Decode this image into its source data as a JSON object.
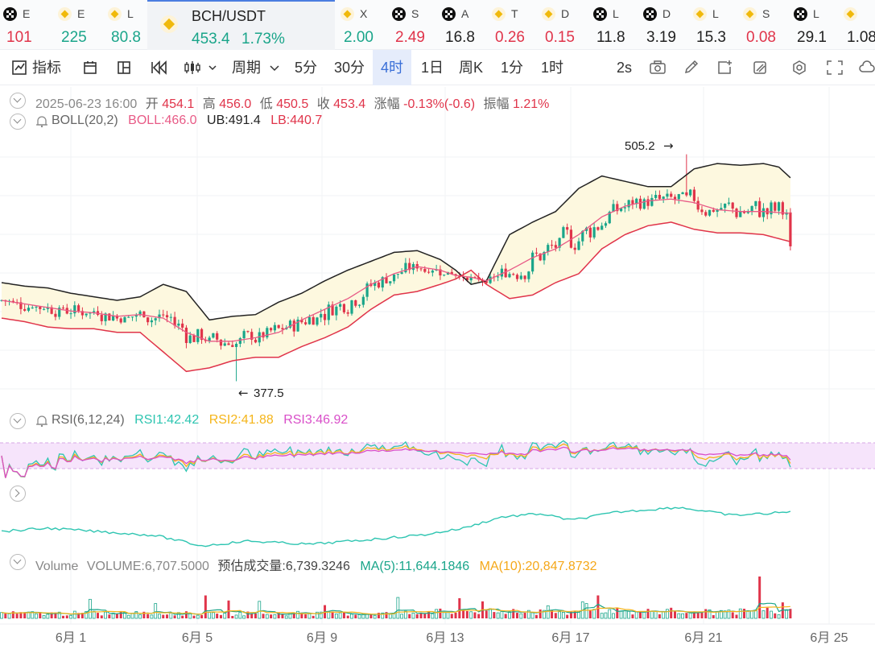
{
  "ticker": [
    {
      "icon": "okx-icon",
      "sym": "E",
      "val": "101",
      "dir": "dn",
      "x": 4
    },
    {
      "icon": "binance-icon",
      "sym": "E",
      "val": "225",
      "dir": "up",
      "x": 72
    },
    {
      "icon": "binance-icon",
      "sym": "L",
      "val": "80.8",
      "dir": "up",
      "x": 134
    },
    {
      "icon": "binance-icon",
      "sym": "X",
      "val": "2.00",
      "dir": "up",
      "x": 423
    },
    {
      "icon": "okx-icon",
      "sym": "S",
      "val": "2.49",
      "dir": "dn",
      "x": 487
    },
    {
      "icon": "okx-icon",
      "sym": "A",
      "val": "16.8",
      "dir": "dk",
      "x": 549
    },
    {
      "icon": "binance-icon",
      "sym": "T",
      "val": "0.26",
      "dir": "dn",
      "x": 611
    },
    {
      "icon": "binance-icon",
      "sym": "D",
      "val": "0.15",
      "dir": "dn",
      "x": 673
    },
    {
      "icon": "okx-icon",
      "sym": "L",
      "val": "11.8",
      "dir": "dk",
      "x": 737
    },
    {
      "icon": "okx-icon",
      "sym": "D",
      "val": "3.19",
      "dir": "dk",
      "x": 799
    },
    {
      "icon": "binance-icon",
      "sym": "L",
      "val": "15.3",
      "dir": "dk",
      "x": 861
    },
    {
      "icon": "binance-icon",
      "sym": "S",
      "val": "0.08",
      "dir": "dn",
      "x": 923
    },
    {
      "icon": "okx-icon",
      "sym": "L",
      "val": "29.1",
      "dir": "dk",
      "x": 986
    },
    {
      "icon": "binance-icon",
      "sym": "",
      "val": "1.08",
      "dir": "dk",
      "x": 1048
    }
  ],
  "active": {
    "name": "BCH/USDT",
    "price": "453.4",
    "change": "1.73%"
  },
  "toolbar": {
    "indicator": "指标",
    "period": "周期",
    "intervals": [
      "5分",
      "30分",
      "4时",
      "1日",
      "周K",
      "1分",
      "1时"
    ],
    "selected": "4时",
    "refresh": "2s"
  },
  "ohlc": {
    "time": "2025-06-23 16:00",
    "open_label": "开",
    "open": "454.1",
    "high_label": "高",
    "high": "456.0",
    "low_label": "低",
    "low": "450.5",
    "close_label": "收",
    "close": "453.4",
    "change_label": "涨幅",
    "change": "-0.13%(-0.6)",
    "amp_label": "振幅",
    "amp": "1.21%"
  },
  "boll": {
    "label": "BOLL(20,2)",
    "mid": "BOLL:466.0",
    "ub": "UB:491.4",
    "lb": "LB:440.7"
  },
  "rsi": {
    "label": "RSI(6,12,24)",
    "r1": "RSI1:42.42",
    "r2": "RSI2:41.88",
    "r3": "RSI3:46.92"
  },
  "volume": {
    "label": "Volume",
    "vol": "VOLUME:6,707.5000",
    "est": "预估成交量:6,739.3246",
    "ma5": "MA(5):11,644.1846",
    "ma10": "MA(10):20,847.8732"
  },
  "colors": {
    "up": "#1aa58a",
    "down": "#e0344a",
    "boll_mid": "#e85a86",
    "boll_band": "#fdf8df",
    "rsi1": "#2ec5b1",
    "rsi2": "#f5b51a",
    "rsi3": "#d94fc9",
    "ma10": "#f5b51a"
  },
  "chart_data": {
    "type": "candlestick",
    "interval": "4h",
    "x_labels": [
      "6月 1",
      "6月 5",
      "6月 9",
      "6月 13",
      "6月 17",
      "6月 21",
      "6月 25"
    ],
    "annotations": {
      "max_label": "505.2",
      "min_label": "377.5",
      "max": 505.2,
      "min": 377.5
    },
    "ylim": [
      370,
      515
    ],
    "mid_path": [
      [
        0,
        423
      ],
      [
        6,
        421
      ],
      [
        12,
        419
      ],
      [
        18,
        417
      ],
      [
        24,
        416
      ],
      [
        30,
        414
      ],
      [
        36,
        415
      ],
      [
        42,
        413
      ],
      [
        48,
        405
      ],
      [
        54,
        400
      ],
      [
        60,
        400
      ],
      [
        66,
        402
      ],
      [
        72,
        405
      ],
      [
        78,
        412
      ],
      [
        84,
        418
      ],
      [
        90,
        424
      ],
      [
        96,
        432
      ],
      [
        102,
        438
      ],
      [
        108,
        442
      ],
      [
        114,
        440
      ],
      [
        118,
        437
      ],
      [
        122,
        436
      ],
      [
        126,
        434
      ],
      [
        132,
        440
      ],
      [
        138,
        447
      ],
      [
        144,
        452
      ],
      [
        150,
        460
      ],
      [
        156,
        470
      ],
      [
        162,
        476
      ],
      [
        168,
        479
      ],
      [
        174,
        480
      ],
      [
        180,
        478
      ],
      [
        186,
        474
      ],
      [
        192,
        473
      ],
      [
        198,
        473
      ],
      [
        205,
        472
      ]
    ],
    "ub_path": [
      [
        0,
        433
      ],
      [
        6,
        431
      ],
      [
        12,
        430
      ],
      [
        18,
        427
      ],
      [
        24,
        425
      ],
      [
        30,
        423
      ],
      [
        36,
        425
      ],
      [
        42,
        432
      ],
      [
        48,
        428
      ],
      [
        54,
        412
      ],
      [
        60,
        414
      ],
      [
        66,
        415
      ],
      [
        72,
        422
      ],
      [
        78,
        427
      ],
      [
        84,
        434
      ],
      [
        90,
        440
      ],
      [
        96,
        445
      ],
      [
        102,
        450
      ],
      [
        108,
        451
      ],
      [
        114,
        446
      ],
      [
        118,
        440
      ],
      [
        122,
        432
      ],
      [
        126,
        434
      ],
      [
        132,
        460
      ],
      [
        138,
        467
      ],
      [
        144,
        473
      ],
      [
        150,
        486
      ],
      [
        156,
        493
      ],
      [
        162,
        490
      ],
      [
        168,
        487
      ],
      [
        174,
        487
      ],
      [
        180,
        497
      ],
      [
        186,
        500
      ],
      [
        192,
        499
      ],
      [
        198,
        500
      ],
      [
        202,
        498
      ],
      [
        205,
        492
      ]
    ],
    "lb_path": [
      [
        0,
        413
      ],
      [
        6,
        411
      ],
      [
        12,
        408
      ],
      [
        18,
        407
      ],
      [
        24,
        407
      ],
      [
        30,
        405
      ],
      [
        36,
        405
      ],
      [
        42,
        394
      ],
      [
        48,
        383
      ],
      [
        54,
        385
      ],
      [
        60,
        389
      ],
      [
        66,
        391
      ],
      [
        72,
        391
      ],
      [
        78,
        397
      ],
      [
        84,
        402
      ],
      [
        90,
        408
      ],
      [
        96,
        418
      ],
      [
        102,
        426
      ],
      [
        108,
        428
      ],
      [
        114,
        432
      ],
      [
        118,
        435
      ],
      [
        122,
        440
      ],
      [
        126,
        432
      ],
      [
        132,
        424
      ],
      [
        138,
        426
      ],
      [
        144,
        433
      ],
      [
        150,
        438
      ],
      [
        156,
        452
      ],
      [
        162,
        460
      ],
      [
        168,
        465
      ],
      [
        174,
        467
      ],
      [
        180,
        463
      ],
      [
        186,
        461
      ],
      [
        192,
        461
      ],
      [
        198,
        460
      ],
      [
        205,
        456
      ]
    ],
    "candles_count": 206,
    "rsi_ylim": [
      0,
      100
    ],
    "rsi_bands": [
      30,
      70
    ],
    "rsi_last": [
      42.42,
      41.88,
      46.92
    ],
    "volume_last": 6707.5,
    "volume_spike_index": 197
  }
}
